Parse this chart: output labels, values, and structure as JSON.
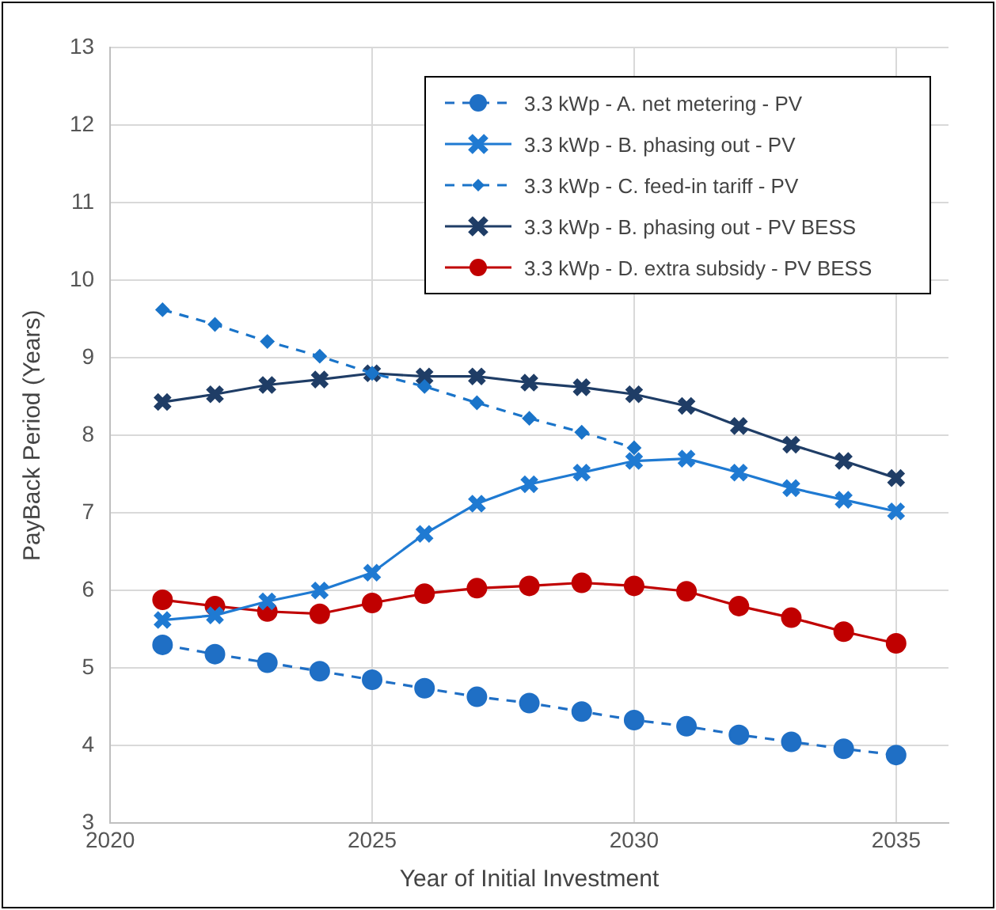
{
  "chart_data": {
    "type": "line",
    "xlabel": "Year of Initial Investment",
    "ylabel": "PayBack Period (Years)",
    "x": [
      2021,
      2022,
      2023,
      2024,
      2025,
      2026,
      2027,
      2028,
      2029,
      2030,
      2031,
      2032,
      2033,
      2034,
      2035
    ],
    "xlim": [
      2020,
      2036
    ],
    "xticks": [
      2020,
      2025,
      2030,
      2035
    ],
    "ylim": [
      3,
      13
    ],
    "yticks": [
      3,
      4,
      5,
      6,
      7,
      8,
      9,
      10,
      11,
      12,
      13
    ],
    "grid": true,
    "legend": "top right",
    "series": [
      {
        "name": "3.3 kWp - A. net metering - PV",
        "color": "#1f6fc5",
        "marker": "circle",
        "line_style": "dashed",
        "values": [
          5.3,
          5.18,
          5.07,
          4.96,
          4.85,
          4.74,
          4.63,
          4.55,
          4.44,
          4.33,
          4.25,
          4.14,
          4.05,
          3.96,
          3.88
        ]
      },
      {
        "name": "3.3 kWp - B. phasing out - PV",
        "color": "#1f7ad2",
        "marker": "cross",
        "line_style": "solid",
        "values": [
          5.62,
          5.68,
          5.86,
          6.0,
          6.23,
          6.73,
          7.12,
          7.37,
          7.52,
          7.67,
          7.7,
          7.52,
          7.32,
          7.17,
          7.02
        ]
      },
      {
        "name": "3.3 kWp - C. feed-in tariff - PV",
        "color": "#1a74c9",
        "marker": "diamond",
        "line_style": "dashed",
        "values": [
          9.62,
          9.43,
          9.21,
          9.02,
          8.8,
          8.63,
          8.42,
          8.22,
          8.04,
          7.84,
          null,
          null,
          null,
          null,
          null
        ]
      },
      {
        "name": "3.3 kWp - B. phasing out - PV BESS",
        "color": "#1f3d66",
        "marker": "cross",
        "line_style": "solid",
        "values": [
          8.43,
          8.53,
          8.65,
          8.72,
          8.8,
          8.76,
          8.76,
          8.68,
          8.62,
          8.53,
          8.38,
          8.12,
          7.88,
          7.67,
          7.45
        ]
      },
      {
        "name": "3.3 kWp - D. extra subsidy - PV BESS",
        "color": "#c00000",
        "marker": "circle",
        "line_style": "solid",
        "values": [
          5.88,
          5.8,
          5.73,
          5.7,
          5.84,
          5.96,
          6.03,
          6.06,
          6.1,
          6.06,
          5.99,
          5.8,
          5.65,
          5.47,
          5.32
        ]
      }
    ]
  }
}
